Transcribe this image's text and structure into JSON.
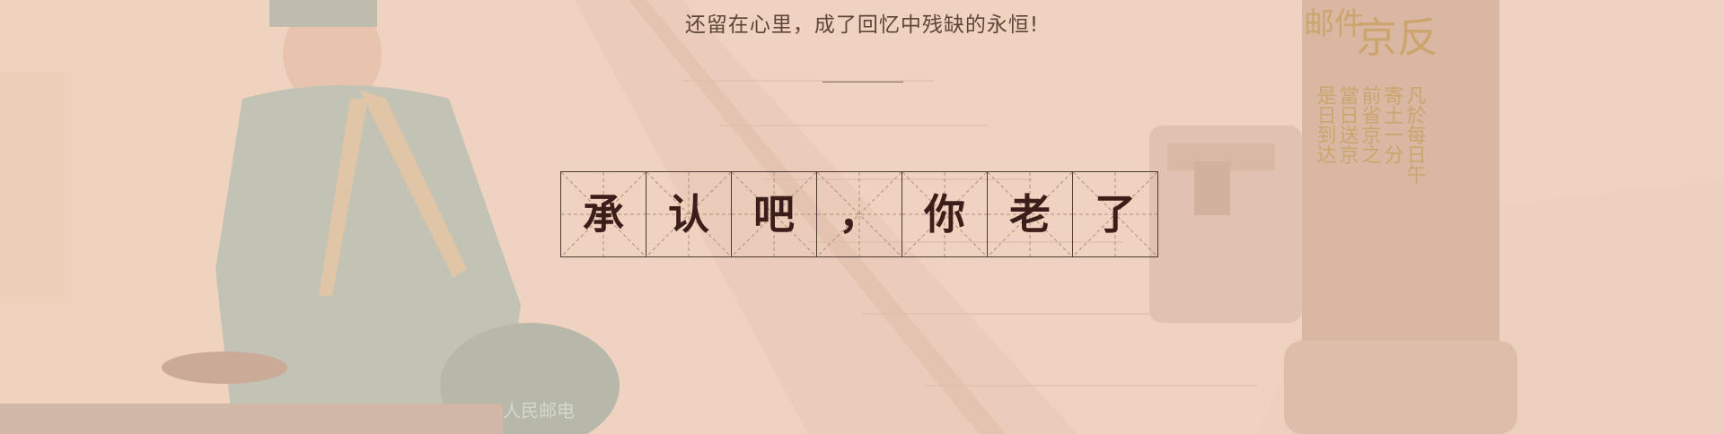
{
  "subtitle": "还留在心里，成了回忆中残缺的永恒!",
  "title_chars": [
    "承",
    "认",
    "吧",
    "，",
    "你",
    "老",
    "了"
  ],
  "pillar_text": {
    "top_left": "邮件",
    "top_right": "京反",
    "column_1": "是日到达",
    "column_2": "當日送京",
    "column_3": "前省京之",
    "column_4": "寄土一分",
    "column_5": "凡於每日午"
  },
  "mailbag_text": "人民邮电",
  "colors": {
    "background": "#efd6c6",
    "grid_line": "#4a3a34",
    "guide_line": "#b08e7c",
    "title_text": "#3b1e19",
    "subtitle_text": "#5d4638",
    "pillar_gold": "#c9a264"
  }
}
